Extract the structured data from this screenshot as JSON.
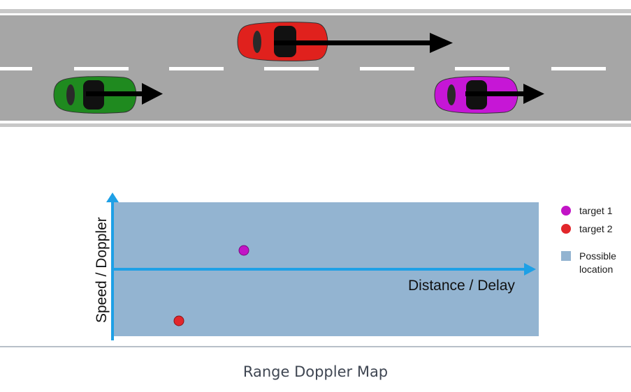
{
  "road": {
    "cars": [
      {
        "name": "green-car",
        "color": "#1f8a1f"
      },
      {
        "name": "red-car",
        "color": "#e0211d"
      },
      {
        "name": "magenta-car",
        "color": "#c616d6"
      }
    ]
  },
  "map": {
    "x_axis_label": "Distance / Delay",
    "y_axis_label": "Speed / Doppler",
    "area_color": "#93b4d1",
    "axis_color": "#1ea0e6"
  },
  "legend": {
    "items": [
      {
        "label": "target 1",
        "color": "#c214c6",
        "marker": "circle"
      },
      {
        "label": "target 2",
        "color": "#e2262b",
        "marker": "circle"
      },
      {
        "label": "Possible location",
        "color": "#93b4d1",
        "marker": "square"
      }
    ]
  },
  "caption": "Range Doppler Map"
}
